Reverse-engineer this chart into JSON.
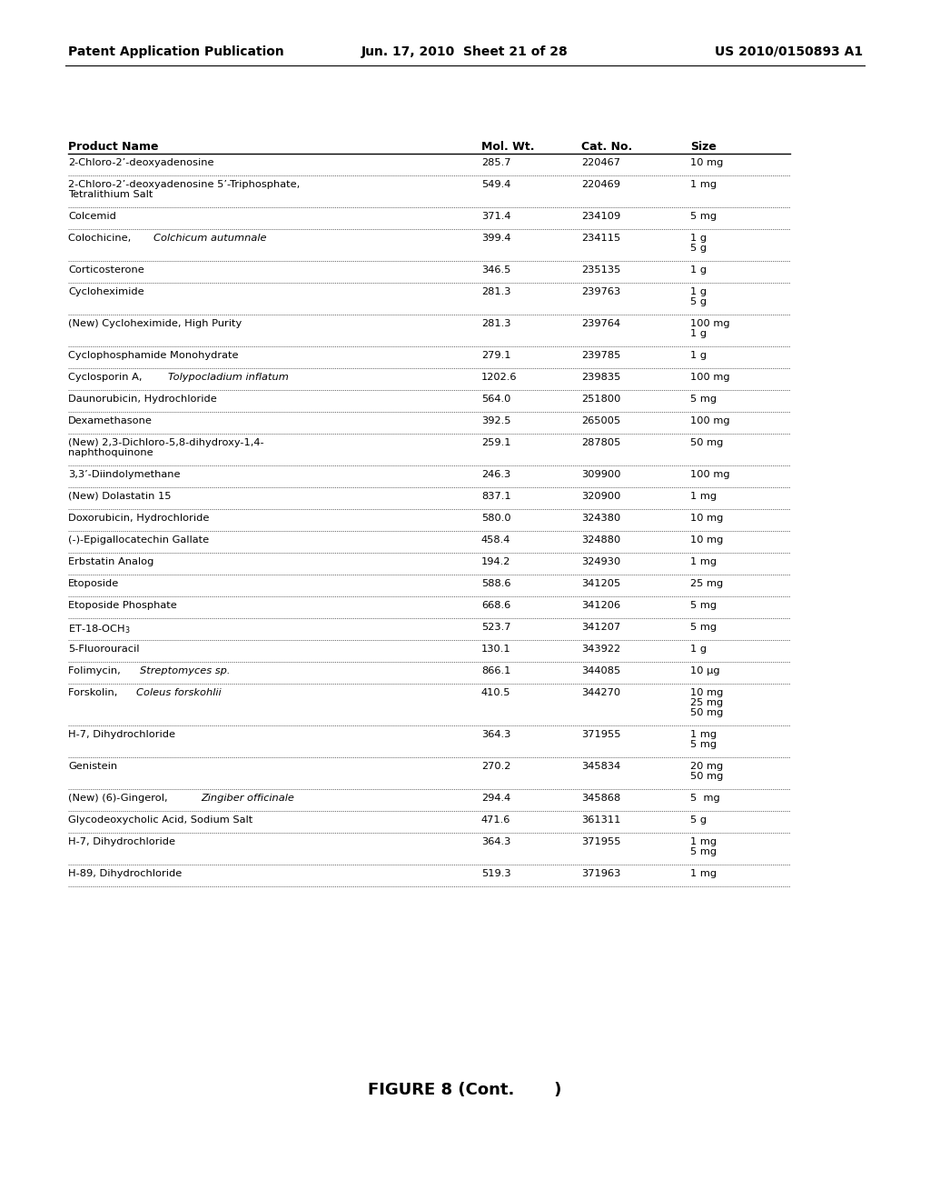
{
  "header_left": "Patent Application Publication",
  "header_middle": "Jun. 17, 2010  Sheet 21 of 28",
  "header_right": "US 2010/0150893 A1",
  "figure_caption": "FIGURE 8 (Cont.       )",
  "col_headers": [
    "Product Name",
    "Mol. Wt.",
    "Cat. No.",
    "Size"
  ],
  "rows": [
    {
      "name": "2-Chloro-2’-deoxyadenosine",
      "italic": false,
      "mol_wt": "285.7",
      "cat_no": "220467",
      "size": "10 mg"
    },
    {
      "name": "2-Chloro-2’-deoxyadenosine 5’-Triphosphate,\nTetralithium Salt",
      "italic": false,
      "mol_wt": "549.4",
      "cat_no": "220469",
      "size": "1 mg"
    },
    {
      "name": "Colcemid",
      "italic": false,
      "mol_wt": "371.4",
      "cat_no": "234109",
      "size": "5 mg"
    },
    {
      "name": "Colochicine, $\\it{Colchicum\\ autumnale}$",
      "italic": false,
      "mol_wt": "399.4",
      "cat_no": "234115",
      "size": "1 g\n5 g"
    },
    {
      "name": "Corticosterone",
      "italic": false,
      "mol_wt": "346.5",
      "cat_no": "235135",
      "size": "1 g"
    },
    {
      "name": "Cycloheximide",
      "italic": false,
      "mol_wt": "281.3",
      "cat_no": "239763",
      "size": "1 g\n5 g"
    },
    {
      "name": "(New) Cycloheximide, High Purity",
      "italic": false,
      "mol_wt": "281.3",
      "cat_no": "239764",
      "size": "100 mg\n1 g"
    },
    {
      "name": "Cyclophosphamide Monohydrate",
      "italic": false,
      "mol_wt": "279.1",
      "cat_no": "239785",
      "size": "1 g"
    },
    {
      "name": "Cyclosporin A, $\\it{Tolypocladium\\ inflatum}$",
      "italic": false,
      "mol_wt": "1202.6",
      "cat_no": "239835",
      "size": "100 mg"
    },
    {
      "name": "Daunorubicin, Hydrochloride",
      "italic": false,
      "mol_wt": "564.0",
      "cat_no": "251800",
      "size": "5 mg"
    },
    {
      "name": "Dexamethasone",
      "italic": false,
      "mol_wt": "392.5",
      "cat_no": "265005",
      "size": "100 mg"
    },
    {
      "name": "(New) 2,3-Dichloro-5,8-dihydroxy-1,4-\nnaphthoquinone",
      "italic": false,
      "mol_wt": "259.1",
      "cat_no": "287805",
      "size": "50 mg"
    },
    {
      "name": "3,3’-Diindolymethane",
      "italic": false,
      "mol_wt": "246.3",
      "cat_no": "309900",
      "size": "100 mg"
    },
    {
      "name": "(New) Dolastatin 15",
      "italic": false,
      "mol_wt": "837.1",
      "cat_no": "320900",
      "size": "1 mg"
    },
    {
      "name": "Doxorubicin, Hydrochloride",
      "italic": false,
      "mol_wt": "580.0",
      "cat_no": "324380",
      "size": "10 mg"
    },
    {
      "name": "(-)-Epigallocatechin Gallate",
      "italic": false,
      "mol_wt": "458.4",
      "cat_no": "324880",
      "size": "10 mg"
    },
    {
      "name": "Erbstatin Analog",
      "italic": false,
      "mol_wt": "194.2",
      "cat_no": "324930",
      "size": "1 mg"
    },
    {
      "name": "Etoposide",
      "italic": false,
      "mol_wt": "588.6",
      "cat_no": "341205",
      "size": "25 mg"
    },
    {
      "name": "Etoposide Phosphate",
      "italic": false,
      "mol_wt": "668.6",
      "cat_no": "341206",
      "size": "5 mg"
    },
    {
      "name": "ET-18-OCH$_3$",
      "italic": false,
      "mol_wt": "523.7",
      "cat_no": "341207",
      "size": "5 mg"
    },
    {
      "name": "5-Fluorouracil",
      "italic": false,
      "mol_wt": "130.1",
      "cat_no": "343922",
      "size": "1 g"
    },
    {
      "name": "Folimycin, $\\it{Streptomyces\\ sp.}$",
      "italic": false,
      "mol_wt": "866.1",
      "cat_no": "344085",
      "size": "10 μg"
    },
    {
      "name": "Forskolin, $\\it{Coleus\\ forskohlii}$",
      "italic": false,
      "mol_wt": "410.5",
      "cat_no": "344270",
      "size": "10 mg\n25 mg\n50 mg"
    },
    {
      "name": "H-7, Dihydrochloride",
      "italic": false,
      "mol_wt": "364.3",
      "cat_no": "371955",
      "size": "1 mg\n5 mg"
    },
    {
      "name": "Genistein",
      "italic": false,
      "mol_wt": "270.2",
      "cat_no": "345834",
      "size": "20 mg\n50 mg"
    },
    {
      "name": "(New) (6)-Gingerol, $\\it{Zingiber\\ officinale}$",
      "italic": false,
      "mol_wt": "294.4",
      "cat_no": "345868",
      "size": "5  mg"
    },
    {
      "name": "Glycodeoxycholic Acid, Sodium Salt",
      "italic": false,
      "mol_wt": "471.6",
      "cat_no": "361311",
      "size": "5 g"
    },
    {
      "name": "H-7, Dihydrochloride",
      "italic": false,
      "mol_wt": "364.3",
      "cat_no": "371955",
      "size": "1 mg\n5 mg"
    },
    {
      "name": "H-89, Dihydrochloride",
      "italic": false,
      "mol_wt": "519.3",
      "cat_no": "371963",
      "size": "1 mg"
    }
  ],
  "background_color": "#ffffff",
  "text_color": "#000000",
  "header_fontsize": 10,
  "table_fontsize": 8.5,
  "col_header_fontsize": 9
}
